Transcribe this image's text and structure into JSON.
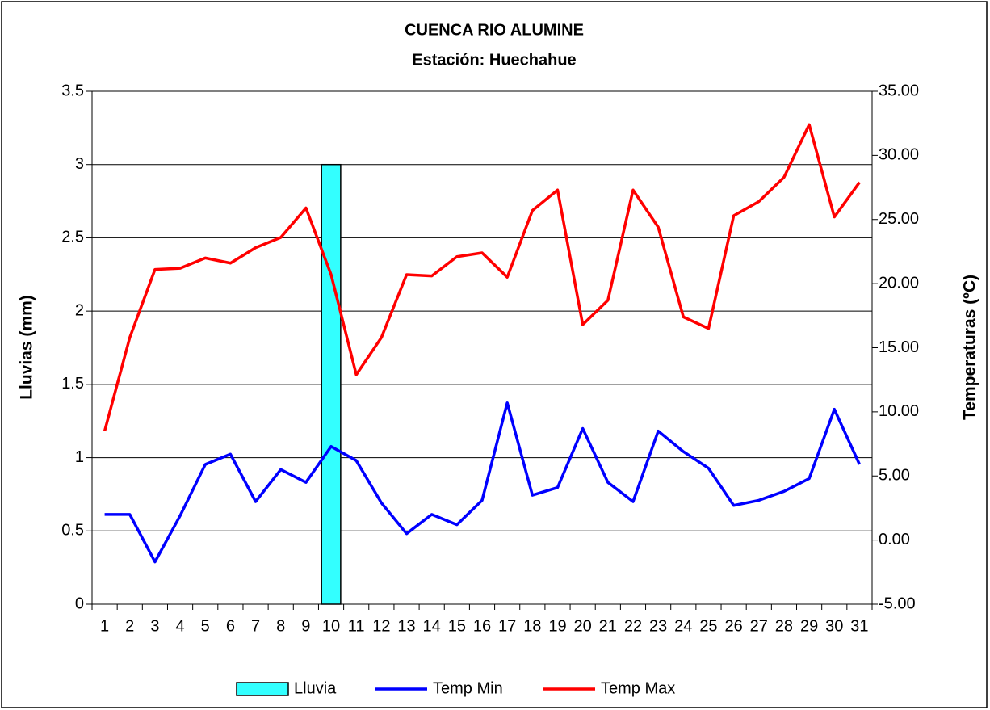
{
  "chart_data": {
    "type": "bar-line",
    "title": "CUENCA RIO ALUMINE",
    "subtitle": "Estación: Huechahue",
    "y_label": "Lluvias (mm)",
    "y2_label": "Temperaturas (ºC)",
    "categories": [
      "1",
      "2",
      "3",
      "4",
      "5",
      "6",
      "7",
      "8",
      "9",
      "10",
      "11",
      "12",
      "13",
      "14",
      "15",
      "16",
      "17",
      "18",
      "19",
      "20",
      "21",
      "22",
      "23",
      "24",
      "25",
      "26",
      "27",
      "28",
      "29",
      "30",
      "31"
    ],
    "series": [
      {
        "name": "Lluvia",
        "type": "bar",
        "color": "#33ffff",
        "axis": "y",
        "values": [
          0,
          0,
          0,
          0,
          0,
          0,
          0,
          0,
          0,
          3,
          0,
          0,
          0,
          0,
          0,
          0,
          0,
          0,
          0,
          0,
          0,
          0,
          0,
          0,
          0,
          0,
          0,
          0,
          0,
          0,
          0
        ]
      },
      {
        "name": "Temp Min",
        "type": "line",
        "color": "#0000ff",
        "axis": "y2",
        "values": [
          2.0,
          2.0,
          -1.7,
          1.9,
          5.9,
          6.7,
          3.0,
          5.5,
          4.5,
          7.3,
          6.2,
          2.9,
          0.5,
          2.0,
          1.2,
          3.1,
          10.7,
          3.5,
          4.1,
          8.7,
          4.5,
          3.0,
          8.5,
          6.9,
          5.6,
          2.7,
          3.1,
          3.8,
          4.8,
          10.2,
          5.9
        ]
      },
      {
        "name": "Temp Max",
        "type": "line",
        "color": "#ff0000",
        "axis": "y2",
        "values": [
          8.5,
          15.8,
          21.1,
          21.2,
          22.0,
          21.6,
          22.8,
          23.6,
          25.9,
          20.7,
          12.9,
          15.8,
          20.7,
          20.6,
          22.1,
          22.4,
          20.5,
          25.7,
          27.3,
          16.8,
          18.7,
          27.3,
          24.4,
          17.4,
          16.5,
          25.3,
          26.4,
          28.3,
          32.4,
          25.2,
          27.9
        ]
      }
    ],
    "ylim": [
      0,
      3.5
    ],
    "yticks": [
      0,
      0.5,
      1,
      1.5,
      2,
      2.5,
      3,
      3.5
    ],
    "y2lim": [
      -5,
      35
    ],
    "y2ticks": [
      {
        "value": -5,
        "label": "-5.00"
      },
      {
        "value": 0,
        "label": "0.00"
      },
      {
        "value": 5,
        "label": "5.00"
      },
      {
        "value": 10,
        "label": "10.00"
      },
      {
        "value": 15,
        "label": "15.00"
      },
      {
        "value": 20,
        "label": "20.00"
      },
      {
        "value": 25,
        "label": "25.00"
      },
      {
        "value": 30,
        "label": "30.00"
      },
      {
        "value": 35,
        "label": "35.00"
      }
    ],
    "grid": true,
    "legend": "bottom"
  }
}
